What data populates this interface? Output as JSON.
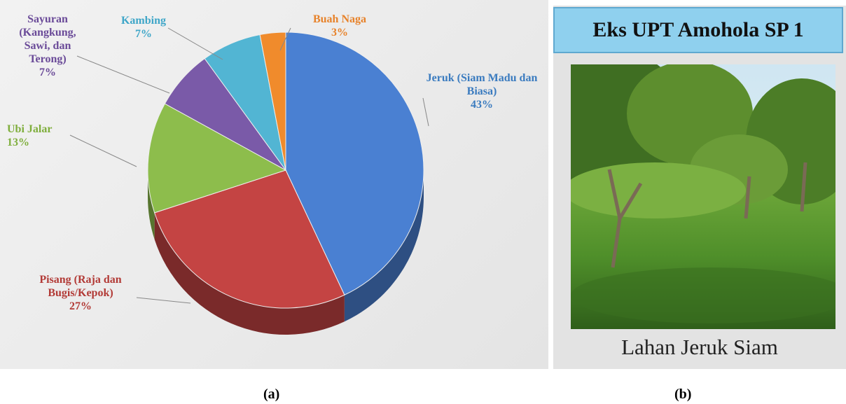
{
  "chart_data": {
    "type": "pie",
    "categories": [
      "Jeruk (Siam Madu dan Biasa)",
      "Pisang (Raja dan Bugis/Kepok)",
      "Ubi Jalar",
      "Sayuran (Kangkung, Sawi, dan Terong)",
      "Kambing",
      "Buah Naga"
    ],
    "values": [
      43,
      27,
      13,
      7,
      7,
      3
    ],
    "value_labels": [
      "43%",
      "27%",
      "13%",
      "7%",
      "7%",
      "3%"
    ],
    "colors": [
      "#4a80d2",
      "#c44443",
      "#8dbd4c",
      "#7a5aa8",
      "#52b5d3",
      "#f08b2c"
    ]
  },
  "panel_b": {
    "title": "Eks UPT Amohola SP 1",
    "caption": "Lahan Jeruk Siam"
  },
  "panel_labels": [
    "(a)",
    "(b)"
  ]
}
